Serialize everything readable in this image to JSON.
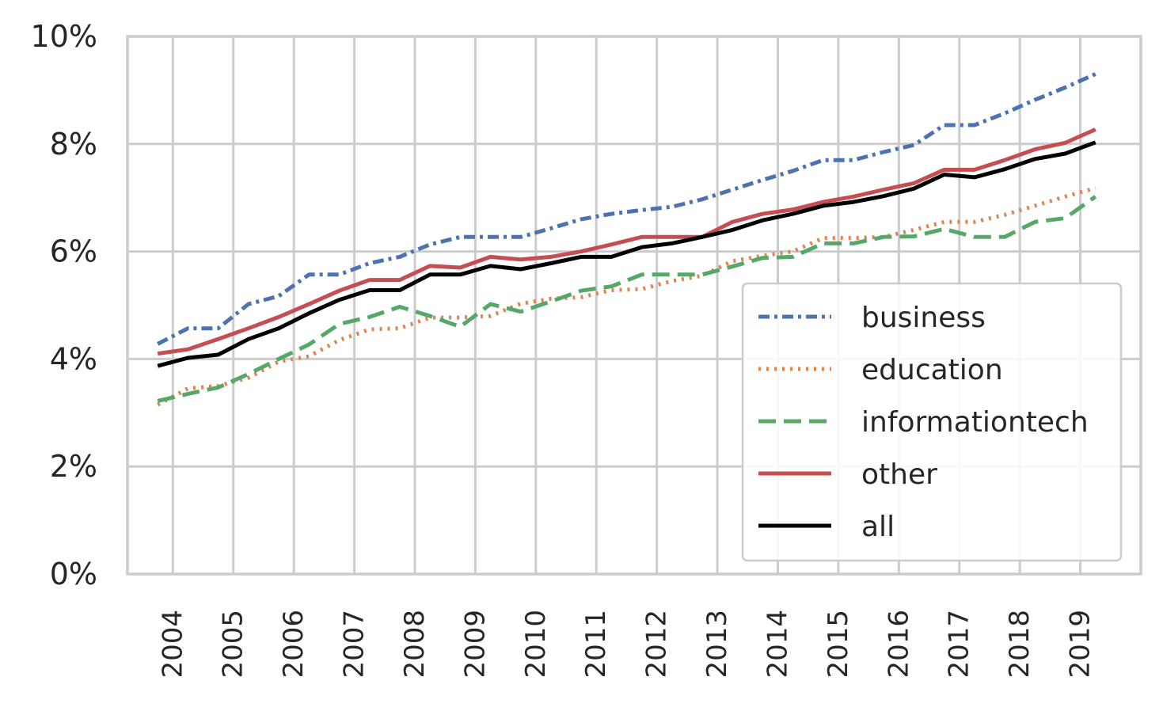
{
  "chart_data": {
    "type": "line",
    "title": "",
    "xlabel": "",
    "ylabel": "",
    "xlim": [
      2003.25,
      2020.0
    ],
    "ylim": [
      0,
      10
    ],
    "y_ticks": [
      0,
      2,
      4,
      6,
      8,
      10
    ],
    "y_tick_labels": [
      "0%",
      "2%",
      "4%",
      "6%",
      "8%",
      "10%"
    ],
    "x_ticks": [
      2004,
      2005,
      2006,
      2007,
      2008,
      2009,
      2010,
      2011,
      2012,
      2013,
      2014,
      2015,
      2016,
      2017,
      2018,
      2019
    ],
    "x_tick_labels": [
      "2004",
      "2005",
      "2006",
      "2007",
      "2008",
      "2009",
      "2010",
      "2011",
      "2012",
      "2013",
      "2014",
      "2015",
      "2016",
      "2017",
      "2018",
      "2019"
    ],
    "x": [
      2003.75,
      2004.25,
      2004.75,
      2005.25,
      2005.75,
      2006.25,
      2006.75,
      2007.25,
      2007.75,
      2008.25,
      2008.75,
      2009.25,
      2009.75,
      2010.25,
      2010.75,
      2011.25,
      2011.75,
      2012.25,
      2012.75,
      2013.25,
      2013.75,
      2014.25,
      2014.75,
      2015.25,
      2015.75,
      2016.25,
      2016.75,
      2017.25,
      2017.75,
      2018.25,
      2018.75,
      2019.25
    ],
    "grid": true,
    "legend_position": "lower-right",
    "series": [
      {
        "name": "business",
        "color": "#4c72b0",
        "dash": "dashdot",
        "values": [
          4.28,
          4.57,
          4.57,
          5.02,
          5.17,
          5.57,
          5.57,
          5.78,
          5.9,
          6.13,
          6.27,
          6.27,
          6.27,
          6.43,
          6.6,
          6.7,
          6.77,
          6.83,
          6.97,
          7.15,
          7.33,
          7.5,
          7.7,
          7.7,
          7.85,
          7.98,
          8.35,
          8.35,
          8.57,
          8.82,
          9.05,
          9.3
        ]
      },
      {
        "name": "education",
        "color": "#dd8452",
        "dash": "dotted",
        "values": [
          3.15,
          3.45,
          3.5,
          3.65,
          3.95,
          4.05,
          4.35,
          4.55,
          4.57,
          4.77,
          4.77,
          4.8,
          5.03,
          5.12,
          5.15,
          5.28,
          5.3,
          5.45,
          5.55,
          5.82,
          5.92,
          6.0,
          6.25,
          6.25,
          6.27,
          6.4,
          6.55,
          6.55,
          6.68,
          6.85,
          7.02,
          7.18
        ]
      },
      {
        "name": "informationtech",
        "color": "#55a868",
        "dash": "dashed",
        "values": [
          3.22,
          3.35,
          3.47,
          3.72,
          4.0,
          4.27,
          4.65,
          4.78,
          4.97,
          4.8,
          4.6,
          5.02,
          4.88,
          5.07,
          5.27,
          5.35,
          5.57,
          5.57,
          5.57,
          5.72,
          5.88,
          5.9,
          6.15,
          6.15,
          6.27,
          6.28,
          6.42,
          6.27,
          6.27,
          6.55,
          6.62,
          7.02
        ]
      },
      {
        "name": "other",
        "color": "#c44e52",
        "dash": "solid",
        "values": [
          4.1,
          4.18,
          4.37,
          4.57,
          4.78,
          5.02,
          5.27,
          5.47,
          5.47,
          5.73,
          5.7,
          5.9,
          5.85,
          5.9,
          6.0,
          6.13,
          6.27,
          6.27,
          6.27,
          6.55,
          6.7,
          6.78,
          6.92,
          7.02,
          7.15,
          7.27,
          7.52,
          7.52,
          7.7,
          7.9,
          8.02,
          8.27
        ]
      },
      {
        "name": "all",
        "color": "#000000",
        "dash": "solid",
        "values": [
          3.87,
          4.02,
          4.08,
          4.37,
          4.57,
          4.85,
          5.1,
          5.28,
          5.28,
          5.57,
          5.57,
          5.73,
          5.67,
          5.78,
          5.9,
          5.9,
          6.08,
          6.15,
          6.27,
          6.4,
          6.58,
          6.7,
          6.85,
          6.92,
          7.03,
          7.17,
          7.43,
          7.38,
          7.53,
          7.72,
          7.82,
          8.03
        ]
      }
    ]
  }
}
